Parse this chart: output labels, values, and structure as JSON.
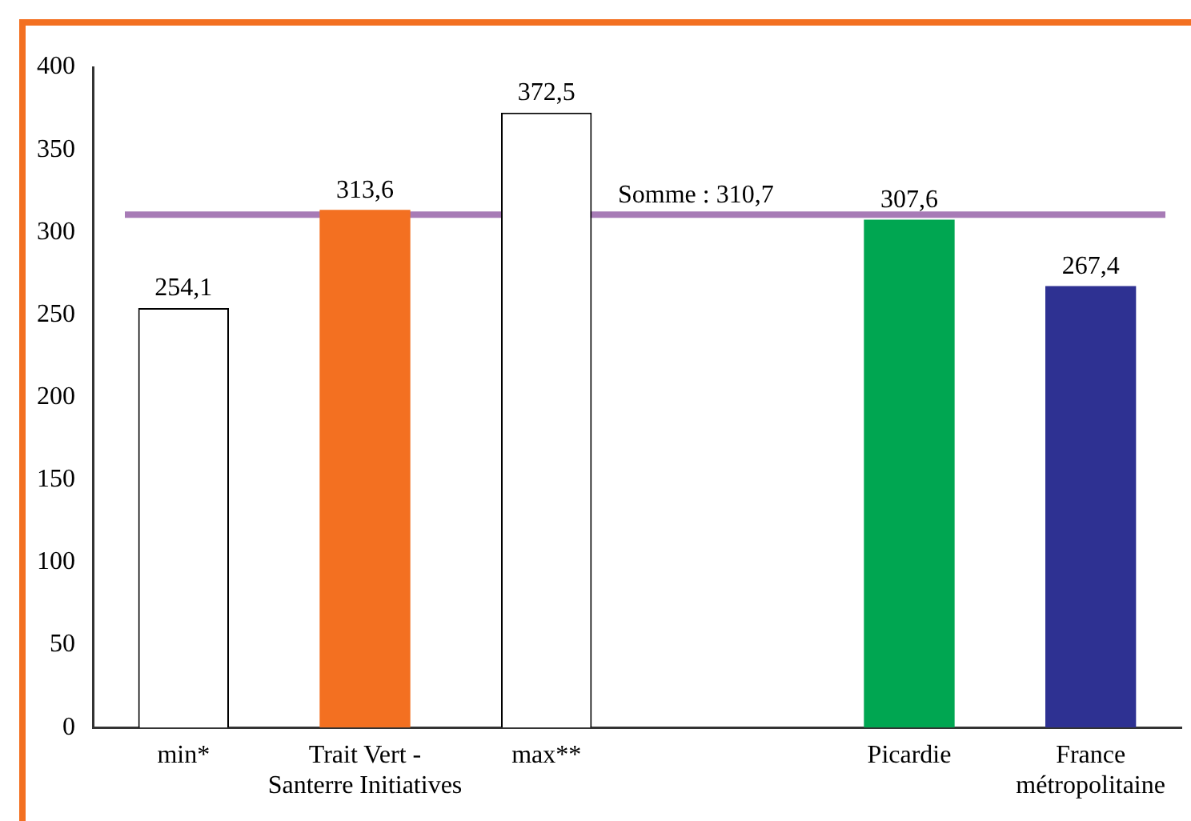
{
  "chart_data": {
    "type": "bar",
    "categories": [
      "min*",
      "Trait Vert - Santerre Initiatives",
      "max**",
      null,
      "Picardie",
      "France métropolitaine"
    ],
    "values": [
      254.1,
      313.6,
      372.5,
      null,
      307.6,
      267.4
    ],
    "colors": [
      "#ffffff",
      "#f37021",
      "#ffffff",
      null,
      "#00a651",
      "#2e3192"
    ],
    "value_labels": [
      "254,1",
      "313,6",
      "372,5",
      null,
      "307,6",
      "267,4"
    ],
    "ylim": [
      0,
      400
    ],
    "yticks": [
      0,
      50,
      100,
      150,
      200,
      250,
      300,
      350,
      400
    ],
    "grid": false,
    "legend": false,
    "ref_lines": [
      {
        "axis": "y",
        "value": 310.7,
        "label": "Somme : 310,7",
        "color": "#a77bb6"
      }
    ]
  }
}
